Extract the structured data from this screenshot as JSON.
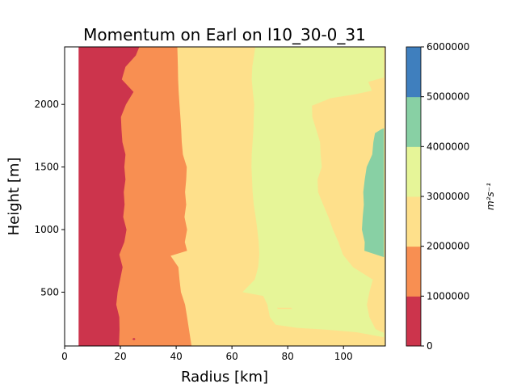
{
  "chart_data": {
    "type": "heatmap",
    "subtype": "filled-contour",
    "title": "Momentum on Earl on l10_30-0_31",
    "xlabel": "Radius [km]",
    "ylabel": "Height [m]",
    "xlim": [
      0,
      115
    ],
    "ylim": [
      70,
      2460
    ],
    "x_ticks": [
      0,
      20,
      40,
      60,
      80,
      100
    ],
    "y_ticks": [
      500,
      1000,
      1500,
      2000
    ],
    "grid": false,
    "data_x_start": 5,
    "colorbar": {
      "label": "m²s⁻¹",
      "levels": [
        0,
        1000000,
        2000000,
        3000000,
        4000000,
        5000000,
        6000000
      ],
      "tick_labels": [
        "0",
        "1000000",
        "2000000",
        "3000000",
        "4000000",
        "5000000",
        "6000000"
      ],
      "colors": [
        "#cc344c",
        "#f88f52",
        "#fee08b",
        "#e6f598",
        "#88d0a4",
        "#3f7fbe"
      ]
    },
    "contour_boundaries": [
      {
        "level": 1000000,
        "points": [
          [
            19.5,
            70
          ],
          [
            19.7,
            200
          ],
          [
            19.6,
            300
          ],
          [
            18.5,
            400
          ],
          [
            19.0,
            500
          ],
          [
            19.9,
            600
          ],
          [
            20.8,
            700
          ],
          [
            19.6,
            800
          ],
          [
            21.4,
            900
          ],
          [
            22.2,
            1000
          ],
          [
            21.0,
            1100
          ],
          [
            21.5,
            1200
          ],
          [
            21.2,
            1300
          ],
          [
            21.8,
            1400
          ],
          [
            21.4,
            1500
          ],
          [
            21.8,
            1600
          ],
          [
            20.7,
            1700
          ],
          [
            20.4,
            1800
          ],
          [
            20.2,
            1900
          ],
          [
            22.0,
            2000
          ],
          [
            24.7,
            2100
          ],
          [
            20.5,
            2200
          ],
          [
            21.8,
            2300
          ],
          [
            25.5,
            2390
          ],
          [
            26.8,
            2460
          ]
        ]
      },
      {
        "level": 2000000,
        "points": [
          [
            45.5,
            70
          ],
          [
            44.6,
            200
          ],
          [
            43.9,
            300
          ],
          [
            43.2,
            400
          ],
          [
            41.7,
            500
          ],
          [
            41.2,
            600
          ],
          [
            40.8,
            700
          ],
          [
            38.0,
            790
          ],
          [
            43.9,
            830
          ],
          [
            43.1,
            900
          ],
          [
            43.9,
            1000
          ],
          [
            43.0,
            1100
          ],
          [
            43.6,
            1200
          ],
          [
            43.2,
            1300
          ],
          [
            43.6,
            1400
          ],
          [
            43.8,
            1500
          ],
          [
            42.4,
            1600
          ],
          [
            42.0,
            1700
          ],
          [
            41.8,
            1800
          ],
          [
            41.5,
            1900
          ],
          [
            41.2,
            2000
          ],
          [
            40.9,
            2100
          ],
          [
            40.7,
            2200
          ],
          [
            40.6,
            2300
          ],
          [
            40.5,
            2400
          ],
          [
            40.4,
            2460
          ]
        ]
      },
      {
        "level": 3000000,
        "points": [
          [
            114.5,
            175
          ],
          [
            111.5,
            205
          ],
          [
            109.3,
            300
          ],
          [
            108.4,
            400
          ],
          [
            109.3,
            500
          ],
          [
            110.5,
            600
          ],
          [
            103.4,
            700
          ],
          [
            99.8,
            800
          ],
          [
            98.2,
            900
          ],
          [
            96.2,
            1000
          ],
          [
            94.6,
            1100
          ],
          [
            92.7,
            1200
          ],
          [
            90.9,
            1300
          ],
          [
            90.7,
            1400
          ],
          [
            92.2,
            1500
          ],
          [
            91.8,
            1600
          ],
          [
            91.6,
            1700
          ],
          [
            90.2,
            1800
          ],
          [
            88.8,
            1900
          ],
          [
            88.7,
            1990
          ],
          [
            95.4,
            2050
          ],
          [
            104.0,
            2080
          ],
          [
            110.2,
            2110
          ],
          [
            108.9,
            2180
          ],
          [
            114.5,
            2215
          ],
          [
            114.5,
            2460
          ],
          [
            68.4,
            2460
          ],
          [
            68.0,
            2400
          ],
          [
            67.3,
            2300
          ],
          [
            67.1,
            2200
          ],
          [
            67.5,
            2100
          ],
          [
            68.0,
            2000
          ],
          [
            67.8,
            1900
          ],
          [
            67.7,
            1800
          ],
          [
            67.4,
            1700
          ],
          [
            67.1,
            1600
          ],
          [
            67.0,
            1500
          ],
          [
            67.2,
            1400
          ],
          [
            67.4,
            1300
          ],
          [
            67.8,
            1200
          ],
          [
            68.5,
            1100
          ],
          [
            69.1,
            1000
          ],
          [
            69.6,
            900
          ],
          [
            69.8,
            800
          ],
          [
            69.4,
            700
          ],
          [
            68.2,
            600
          ],
          [
            63.8,
            500
          ],
          [
            71.2,
            470
          ],
          [
            72.7,
            400
          ],
          [
            73.6,
            300
          ],
          [
            75.7,
            240
          ],
          [
            83.4,
            215
          ],
          [
            94.0,
            200
          ],
          [
            104.7,
            180
          ],
          [
            114.5,
            140
          ]
        ]
      },
      {
        "level": 4000000,
        "points": [
          [
            114.5,
            780
          ],
          [
            107.5,
            830
          ],
          [
            107.6,
            900
          ],
          [
            106.6,
            1000
          ],
          [
            106.9,
            1100
          ],
          [
            107.3,
            1200
          ],
          [
            107.1,
            1300
          ],
          [
            107.6,
            1400
          ],
          [
            108.3,
            1500
          ],
          [
            110.3,
            1600
          ],
          [
            110.7,
            1700
          ],
          [
            111.3,
            1770
          ],
          [
            113.4,
            1800
          ],
          [
            114.5,
            1810
          ]
        ]
      }
    ],
    "islands": [
      {
        "level": 1000000,
        "points": [
          [
            24.9,
            115
          ],
          [
            24.2,
            125
          ],
          [
            24.9,
            135
          ],
          [
            25.4,
            125
          ]
        ]
      },
      {
        "level": 1000000,
        "points": [
          [
            19.4,
            1600
          ],
          [
            19.4,
            1675
          ],
          [
            20.2,
            1670
          ],
          [
            20.1,
            1605
          ]
        ]
      },
      {
        "level": 1000000,
        "points": [
          [
            25.5,
            2390
          ],
          [
            26.3,
            2440
          ],
          [
            26.8,
            2460
          ],
          [
            25.8,
            2460
          ],
          [
            25.3,
            2420
          ]
        ]
      },
      {
        "level": 3000000,
        "points": [
          [
            76.2,
            375
          ],
          [
            81.2,
            375
          ],
          [
            81.7,
            365
          ],
          [
            76.4,
            365
          ]
        ]
      }
    ]
  }
}
